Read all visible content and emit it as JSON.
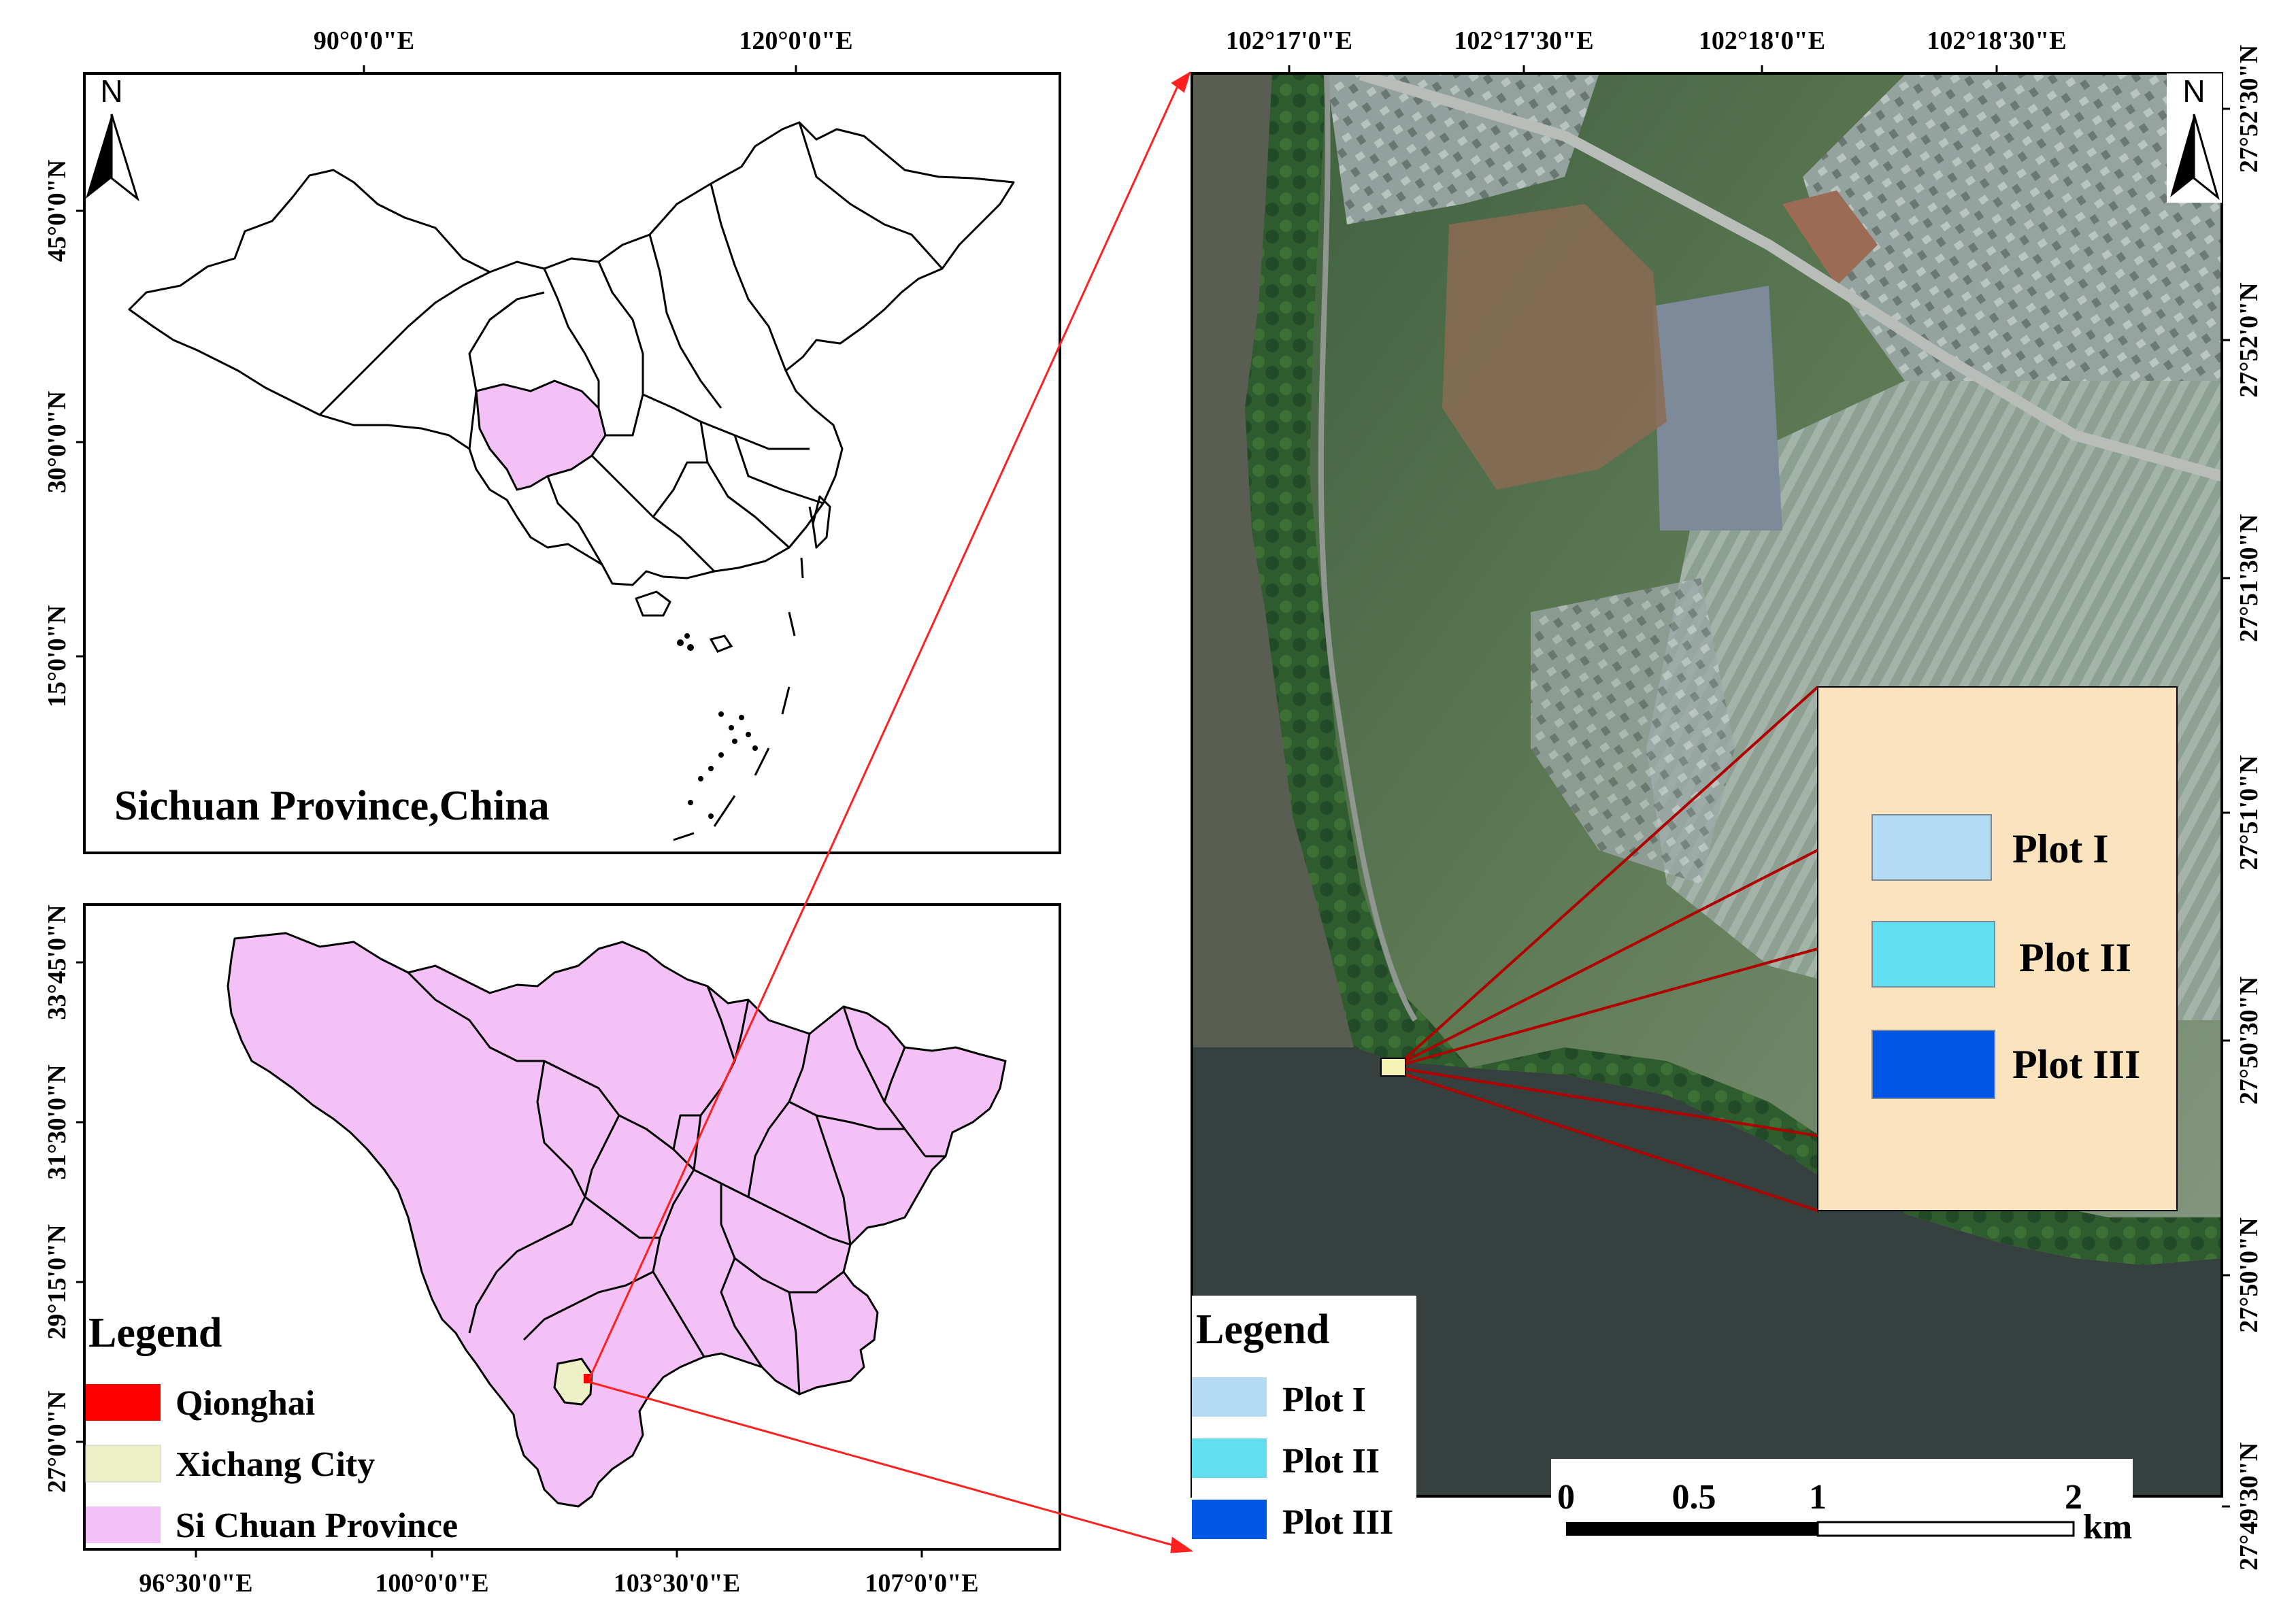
{
  "china_map": {
    "caption": "Sichuan Province,China",
    "north_label": "N",
    "top_ticks": [
      "90°0'0\"E",
      "120°0'0\"E"
    ],
    "left_ticks": [
      "45°0'0\"N",
      "30°0'0\"N",
      "15°0'0\"N"
    ],
    "highlight_color": "#f3c1f5"
  },
  "sichuan_map": {
    "legend_title": "Legend",
    "legend_items": [
      {
        "label": "Qionghai",
        "color": "#ff0000"
      },
      {
        "label": "Xichang City",
        "color": "#eef0c8"
      },
      {
        "label": "Si Chuan Province",
        "color": "#f3c1f5"
      }
    ],
    "bottom_ticks": [
      "96°30'0\"E",
      "100°0'0\"E",
      "103°30'0\"E",
      "107°0'0\"E"
    ],
    "left_ticks": [
      "33°45'0\"N",
      "31°30'0\"N",
      "29°15'0\"N",
      "27°0'0\"N"
    ]
  },
  "satellite_map": {
    "north_label": "N",
    "top_ticks": [
      "102°17'0\"E",
      "102°17'30\"E",
      "102°18'0\"E",
      "102°18'30\"E"
    ],
    "right_ticks": [
      "27°52'30\"N",
      "27°52'0\"N",
      "27°51'30\"N",
      "27°51'0\"N",
      "27°50'30\"N",
      "27°50'0\"N",
      "27°49'30\"N"
    ],
    "inset_legend": [
      {
        "label": "Plot I",
        "color": "#b3dcf4"
      },
      {
        "label": "Plot II",
        "color": "#62def1"
      },
      {
        "label": "Plot III",
        "color": "#0057e6"
      }
    ],
    "legend_title": "Legend",
    "legend_items": [
      {
        "label": "Plot I",
        "color": "#b3dcf4"
      },
      {
        "label": "Plot II",
        "color": "#62def1"
      },
      {
        "label": "Plot III",
        "color": "#0057e6"
      }
    ],
    "scalebar": {
      "ticks": [
        "0",
        "0.5",
        "1",
        "2"
      ],
      "unit": "km"
    },
    "inset_bg_color": "#fbe3bd"
  }
}
